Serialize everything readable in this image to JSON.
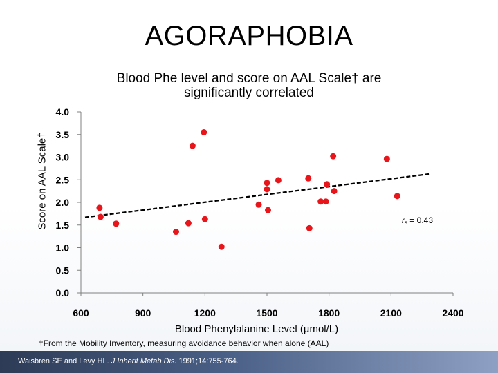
{
  "slide": {
    "title": "AGORAPHOBIA",
    "footnote": "†From the Mobility Inventory, measuring avoidance behavior when alone (AAL)",
    "citation": {
      "authors": "Waisbren SE and Levy HL. ",
      "journal": "J Inherit Metab Dis.",
      "details": " 1991;14:755-764."
    }
  },
  "chart_data": {
    "type": "scatter",
    "title": "Blood Phe level and score on AAL Scale† are significantly correlated",
    "xlabel": "Blood Phenylalanine Level (µmol/L)",
    "ylabel": "Score on AAL Scale†",
    "xlim": [
      600,
      2400
    ],
    "ylim": [
      0.0,
      4.0
    ],
    "xticks": [
      "600",
      "900",
      "1200",
      "1500",
      "1800",
      "2100",
      "2400"
    ],
    "yticks": [
      "0.0",
      "0.5",
      "1.0",
      "1.5",
      "2.0",
      "2.5",
      "3.0",
      "3.5",
      "4.0"
    ],
    "grid": false,
    "point_color": "#e8161b",
    "annotation": {
      "symbol": "r",
      "subscript": "s",
      "text": " = 0.43"
    },
    "trendline": {
      "style": "dashed",
      "x": [
        620,
        2290
      ],
      "y": [
        1.67,
        2.63
      ]
    },
    "points": [
      {
        "x": 690,
        "y": 1.88
      },
      {
        "x": 695,
        "y": 1.68
      },
      {
        "x": 770,
        "y": 1.53
      },
      {
        "x": 1060,
        "y": 1.35
      },
      {
        "x": 1120,
        "y": 1.54
      },
      {
        "x": 1140,
        "y": 3.25
      },
      {
        "x": 1195,
        "y": 3.55
      },
      {
        "x": 1200,
        "y": 1.63
      },
      {
        "x": 1280,
        "y": 1.02
      },
      {
        "x": 1460,
        "y": 1.95
      },
      {
        "x": 1500,
        "y": 2.43
      },
      {
        "x": 1500,
        "y": 2.29
      },
      {
        "x": 1505,
        "y": 1.83
      },
      {
        "x": 1555,
        "y": 2.49
      },
      {
        "x": 1700,
        "y": 2.53
      },
      {
        "x": 1705,
        "y": 1.43
      },
      {
        "x": 1760,
        "y": 2.02
      },
      {
        "x": 1785,
        "y": 2.02
      },
      {
        "x": 1790,
        "y": 2.4
      },
      {
        "x": 1820,
        "y": 3.02
      },
      {
        "x": 1825,
        "y": 2.25
      },
      {
        "x": 2080,
        "y": 2.96
      },
      {
        "x": 2130,
        "y": 2.14
      }
    ]
  }
}
